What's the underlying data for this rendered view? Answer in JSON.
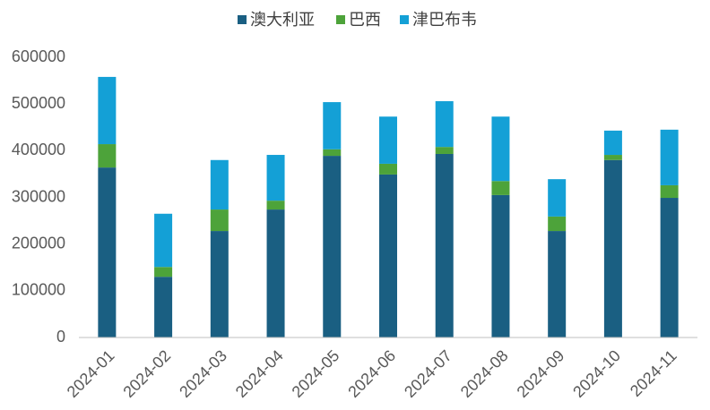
{
  "chart_data": {
    "type": "bar",
    "stacked": true,
    "categories": [
      "2024-01",
      "2024-02",
      "2024-03",
      "2024-04",
      "2024-05",
      "2024-06",
      "2024-07",
      "2024-08",
      "2024-09",
      "2024-10",
      "2024-11"
    ],
    "series": [
      {
        "name": "澳大利亚",
        "color": "#1a5f82",
        "values": [
          364000,
          130000,
          228000,
          274000,
          389000,
          349000,
          393000,
          305000,
          228000,
          380000,
          299000
        ]
      },
      {
        "name": "巴西",
        "color": "#4da33a",
        "values": [
          50000,
          21000,
          46000,
          19000,
          14000,
          23000,
          15000,
          30000,
          31000,
          11000,
          27000
        ]
      },
      {
        "name": "津巴布韦",
        "color": "#14a0d6",
        "values": [
          144000,
          114000,
          106000,
          98000,
          101000,
          101000,
          98000,
          138000,
          80000,
          52000,
          119000
        ]
      }
    ],
    "ylim": [
      0,
      600000
    ],
    "yticks": [
      0,
      100000,
      200000,
      300000,
      400000,
      500000,
      600000
    ],
    "grid": false,
    "legend": "top"
  }
}
